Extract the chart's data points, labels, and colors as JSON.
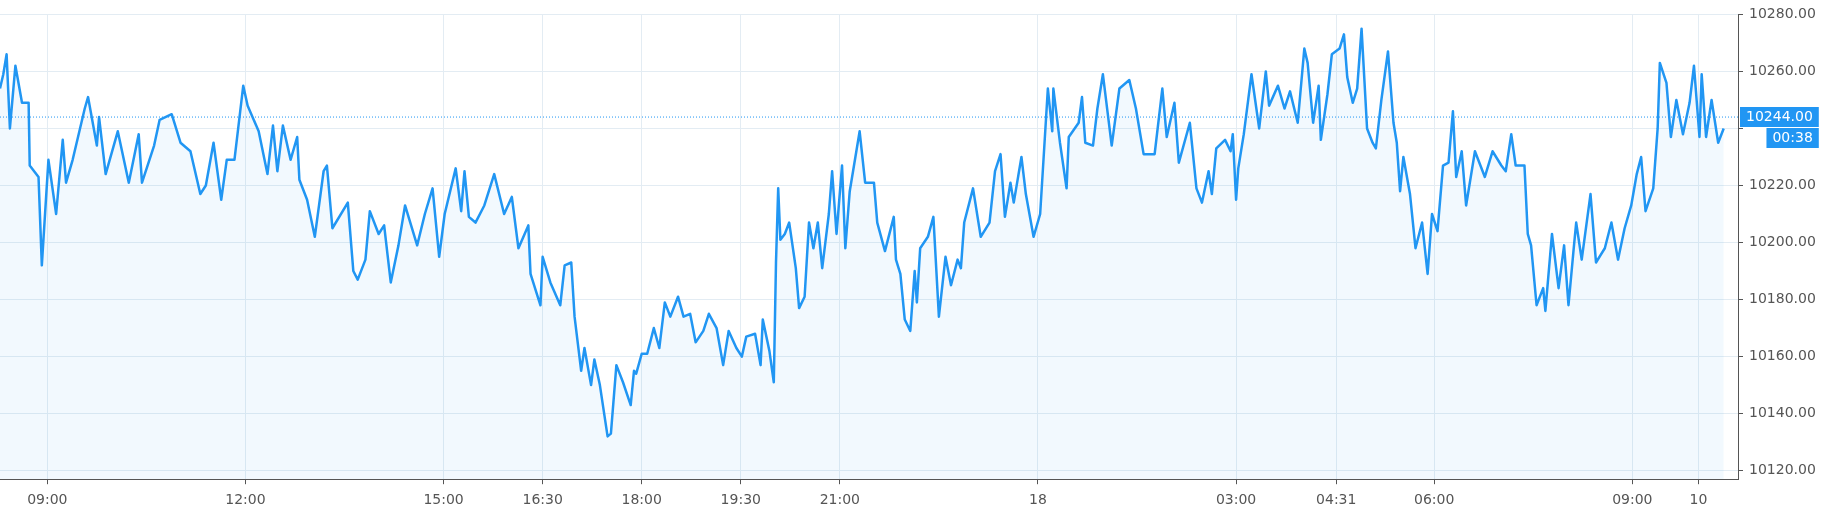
{
  "chart_data": {
    "type": "area",
    "color": "#2196f3",
    "marker": "none",
    "grid": true,
    "legend": false,
    "x": [
      "--09-17T08:17",
      "--09-17T08:20",
      "--09-17T08:23",
      "--09-17T08:26",
      "--09-17T08:31",
      "--09-17T08:37",
      "--09-17T08:43",
      "--09-17T08:44",
      "--09-17T08:52",
      "--09-17T08:55",
      "--09-17T09:01",
      "--09-17T09:08",
      "--09-17T09:14",
      "--09-17T09:17",
      "--09-17T09:23",
      "--09-17T09:34",
      "--09-17T09:37",
      "--09-17T09:45",
      "--09-17T09:47",
      "--09-17T09:53",
      "--09-17T10:04",
      "--09-17T10:14",
      "--09-17T10:23",
      "--09-17T10:26",
      "--09-17T10:37",
      "--09-17T10:42",
      "--09-17T10:53",
      "--09-17T11:01",
      "--09-17T11:10",
      "--09-17T11:19",
      "--09-17T11:24",
      "--09-17T11:31",
      "--09-17T11:38",
      "--09-17T11:43",
      "--09-17T11:50",
      "--09-17T11:58",
      "--09-17T12:02",
      "--09-17T12:12",
      "--09-17T12:20",
      "--09-17T12:25",
      "--09-17T12:29",
      "--09-17T12:34",
      "--09-17T12:41",
      "--09-17T12:47",
      "--09-17T12:49",
      "--09-17T12:56",
      "--09-17T13:03",
      "--09-17T13:11",
      "--09-17T13:14",
      "--09-17T13:19",
      "--09-17T13:33",
      "--09-17T13:38",
      "--09-17T13:42",
      "--09-17T13:49",
      "--09-17T13:53",
      "--09-17T14:01",
      "--09-17T14:06",
      "--09-17T14:12",
      "--09-17T14:19",
      "--09-17T14:25",
      "--09-17T14:36",
      "--09-17T14:43",
      "--09-17T14:50",
      "--09-17T14:56",
      "--09-17T15:01",
      "--09-17T15:11",
      "--09-17T15:16",
      "--09-17T15:19",
      "--09-17T15:23",
      "--09-17T15:29",
      "--09-17T15:37",
      "--09-17T15:46",
      "--09-17T15:55",
      "--09-17T16:02",
      "--09-17T16:08",
      "--09-17T16:17",
      "--09-17T16:19",
      "--09-17T16:28",
      "--09-17T16:30",
      "--09-17T16:37",
      "--09-17T16:46",
      "--09-17T16:50",
      "--09-17T16:56",
      "--09-17T16:59",
      "--09-17T17:05",
      "--09-17T17:08",
      "--09-17T17:14",
      "--09-17T17:17",
      "--09-17T17:22",
      "--09-17T17:29",
      "--09-17T17:32",
      "--09-17T17:37",
      "--09-17T17:43",
      "--09-17T17:50",
      "--09-17T17:53",
      "--09-17T17:55",
      "--09-17T18:00",
      "--09-17T18:05",
      "--09-17T18:11",
      "--09-17T18:16",
      "--09-17T18:21",
      "--09-17T18:26",
      "--09-17T18:33",
      "--09-17T18:38",
      "--09-17T18:44",
      "--09-17T18:49",
      "--09-17T18:56",
      "--09-17T19:01",
      "--09-17T19:08",
      "--09-17T19:14",
      "--09-17T19:19",
      "--09-17T19:26",
      "--09-17T19:31",
      "--09-17T19:35",
      "--09-17T19:43",
      "--09-17T19:48",
      "--09-17T19:50",
      "--09-17T19:56",
      "--09-17T20:00",
      "--09-17T20:02",
      "--09-17T20:04",
      "--09-17T20:06",
      "--09-17T20:10",
      "--09-17T20:14",
      "--09-17T20:20",
      "--09-17T20:23",
      "--09-17T20:28",
      "--09-17T20:32",
      "--09-17T20:36",
      "--09-17T20:40",
      "--09-17T20:44",
      "--09-17T20:50",
      "--09-17T20:53",
      "--09-17T20:57",
      "--09-17T21:02",
      "--09-17T21:05",
      "--09-17T21:09",
      "--09-17T21:18",
      "--09-17T21:23",
      "--09-17T21:31",
      "--09-17T21:34",
      "--09-17T21:41",
      "--09-17T21:49",
      "--09-17T21:51",
      "--09-17T21:55",
      "--09-17T21:59",
      "--09-17T22:04",
      "--09-17T22:08",
      "--09-17T22:10",
      "--09-17T22:13",
      "--09-17T22:20",
      "--09-17T22:25",
      "--09-17T22:30",
      "--09-17T22:36",
      "--09-17T22:41",
      "--09-17T22:47",
      "--09-17T22:50",
      "--09-17T22:53",
      "--09-17T23:01",
      "--09-17T23:08",
      "--09-17T23:16",
      "--09-17T23:21",
      "--09-17T23:26",
      "--09-17T23:30",
      "--09-17T23:35",
      "--09-17T23:38",
      "--09-17T23:45",
      "--09-17T23:49",
      "--09-17T23:56",
      "--09-18T00:02",
      "--09-18T00:09",
      "--09-18T00:13",
      "--09-18T00:14",
      "--09-18T00:20",
      "--09-18T00:26",
      "--09-18T00:28",
      "--09-18T00:37",
      "--09-18T00:40",
      "--09-18T00:43",
      "--09-18T00:50",
      "--09-18T00:54",
      "--09-18T00:59",
      "--09-18T01:07",
      "--09-18T01:14",
      "--09-18T01:23",
      "--09-18T01:29",
      "--09-18T01:36",
      "--09-18T01:46",
      "--09-18T01:53",
      "--09-18T01:57",
      "--09-18T02:04",
      "--09-18T02:08",
      "--09-18T02:18",
      "--09-18T02:24",
      "--09-18T02:29",
      "--09-18T02:35",
      "--09-18T02:38",
      "--09-18T02:42",
      "--09-18T02:50",
      "--09-18T02:55",
      "--09-18T02:57",
      "--09-18T03:00",
      "--09-18T03:02",
      "--09-18T03:07",
      "--09-18T03:11",
      "--09-18T03:14",
      "--09-18T03:21",
      "--09-18T03:27",
      "--09-18T03:30",
      "--09-18T03:38",
      "--09-18T03:44",
      "--09-18T03:49",
      "--09-18T03:56",
      "--09-18T04:02",
      "--09-18T04:05",
      "--09-18T04:10",
      "--09-18T04:15",
      "--09-18T04:17",
      "--09-18T04:23",
      "--09-18T04:27",
      "--09-18T04:34",
      "--09-18T04:38",
      "--09-18T04:41",
      "--09-18T04:46",
      "--09-18T04:50",
      "--09-18T04:54",
      "--09-18T04:59",
      "--09-18T05:04",
      "--09-18T05:07",
      "--09-18T05:12",
      "--09-18T05:18",
      "--09-18T05:23",
      "--09-18T05:26",
      "--09-18T05:29",
      "--09-18T05:32",
      "--09-18T05:38",
      "--09-18T05:43",
      "--09-18T05:49",
      "--09-18T05:54",
      "--09-18T05:58",
      "--09-18T06:03",
      "--09-18T06:08",
      "--09-18T06:13",
      "--09-18T06:17",
      "--09-18T06:20",
      "--09-18T06:25",
      "--09-18T06:29",
      "--09-18T06:37",
      "--09-18T06:46",
      "--09-18T06:53",
      "--09-18T07:01",
      "--09-18T07:05",
      "--09-18T07:10",
      "--09-18T07:14",
      "--09-18T07:22",
      "--09-18T07:25",
      "--09-18T07:28",
      "--09-18T07:33",
      "--09-18T07:39",
      "--09-18T07:41",
      "--09-18T07:47",
      "--09-18T07:53",
      "--09-18T07:58",
      "--09-18T08:02",
      "--09-18T08:07",
      "--09-18T08:09",
      "--09-18T08:14",
      "--09-18T08:22",
      "--09-18T08:27",
      "--09-18T08:35",
      "--09-18T08:41",
      "--09-18T08:47",
      "--09-18T08:53",
      "--09-18T08:59",
      "--09-18T09:04",
      "--09-18T09:08",
      "--09-18T09:12",
      "--09-18T09:19",
      "--09-18T09:23",
      "--09-18T09:25",
      "--09-18T09:31",
      "--09-18T09:35",
      "--09-18T09:40",
      "--09-18T09:46",
      "--09-18T09:52",
      "--09-18T09:56",
      "--09-18T10:01",
      "--09-18T10:03",
      "--09-18T10:07",
      "--09-18T10:12",
      "--09-18T10:18",
      "--09-18T10:23"
    ],
    "values": [
      10254,
      10259,
      10266,
      10240,
      10262,
      10249,
      10249,
      10227,
      10223,
      10192,
      10229,
      10210,
      10236,
      10221,
      10229,
      10247,
      10251,
      10234,
      10244,
      10224,
      10239,
      10221,
      10238,
      10221,
      10234,
      10243,
      10245,
      10235,
      10232,
      10217,
      10220,
      10235,
      10215,
      10229,
      10229,
      10255,
      10248,
      10239,
      10224,
      10241,
      10225,
      10241,
      10229,
      10237,
      10222,
      10215,
      10202,
      10225,
      10227,
      10205,
      10214,
      10190,
      10187,
      10194,
      10211,
      10203,
      10206,
      10186,
      10199,
      10213,
      10199,
      10210,
      10219,
      10195,
      10210,
      10226,
      10211,
      10225,
      10209,
      10207,
      10213,
      10224,
      10210,
      10216,
      10198,
      10206,
      10189,
      10178,
      10195,
      10186,
      10178,
      10192,
      10193,
      10174,
      10155,
      10163,
      10150,
      10159,
      10150,
      10132,
      10133,
      10157,
      10151,
      10143,
      10155,
      10154,
      10161,
      10161,
      10170,
      10163,
      10179,
      10174,
      10181,
      10174,
      10175,
      10165,
      10169,
      10175,
      10170,
      10157,
      10169,
      10163,
      10160,
      10167,
      10168,
      10157,
      10173,
      10162,
      10151,
      10193,
      10219,
      10201,
      10203,
      10207,
      10191,
      10177,
      10181,
      10207,
      10198,
      10207,
      10191,
      10210,
      10225,
      10203,
      10227,
      10198,
      10218,
      10239,
      10221,
      10221,
      10207,
      10197,
      10209,
      10194,
      10189,
      10173,
      10169,
      10190,
      10179,
      10198,
      10202,
      10209,
      10174,
      10195,
      10185,
      10194,
      10191,
      10207,
      10219,
      10202,
      10207,
      10225,
      10231,
      10209,
      10221,
      10214,
      10230,
      10217,
      10202,
      10210,
      10254,
      10239,
      10254,
      10235,
      10219,
      10237,
      10242,
      10251,
      10235,
      10234,
      10247,
      10259,
      10234,
      10254,
      10257,
      10247,
      10231,
      10231,
      10254,
      10237,
      10249,
      10228,
      10242,
      10219,
      10214,
      10225,
      10217,
      10233,
      10236,
      10232,
      10238,
      10215,
      10226,
      10238,
      10250,
      10259,
      10240,
      10260,
      10248,
      10255,
      10247,
      10253,
      10242,
      10268,
      10263,
      10242,
      10255,
      10236,
      10252,
      10266,
      10268,
      10273,
      10258,
      10249,
      10254,
      10275,
      10240,
      10235,
      10233,
      10250,
      10267,
      10242,
      10235,
      10218,
      10230,
      10217,
      10198,
      10207,
      10189,
      10210,
      10204,
      10227,
      10228,
      10246,
      10223,
      10232,
      10213,
      10232,
      10223,
      10232,
      10227,
      10225,
      10238,
      10227,
      10227,
      10203,
      10199,
      10178,
      10184,
      10176,
      10203,
      10184,
      10199,
      10178,
      10199,
      10207,
      10194,
      10217,
      10193,
      10198,
      10207,
      10194,
      10205,
      10213,
      10224,
      10230,
      10211,
      10219,
      10240,
      10263,
      10256,
      10237,
      10250,
      10238,
      10249,
      10262,
      10237,
      10259,
      10237,
      10250,
      10235,
      10240
    ],
    "xlim": [
      "--09-17T08:17",
      "--09-18T10:36"
    ],
    "xticks": [
      {
        "value": "--09-17T09:00",
        "label": "09:00"
      },
      {
        "value": "--09-17T12:00",
        "label": "12:00"
      },
      {
        "value": "--09-17T15:00",
        "label": "15:00"
      },
      {
        "value": "--09-17T16:30",
        "label": "16:30"
      },
      {
        "value": "--09-17T18:00",
        "label": "18:00"
      },
      {
        "value": "--09-17T19:30",
        "label": "19:30"
      },
      {
        "value": "--09-17T21:00",
        "label": "21:00"
      },
      {
        "value": "--09-18T00:00",
        "label": "18"
      },
      {
        "value": "--09-18T03:00",
        "label": "03:00"
      },
      {
        "value": "--09-18T04:31",
        "label": "04:31"
      },
      {
        "value": "--09-18T06:00",
        "label": "06:00"
      },
      {
        "value": "--09-18T09:00",
        "label": "09:00"
      },
      {
        "value": "--09-18T10:00",
        "label": "10"
      }
    ],
    "ylim": [
      10117,
      10280
    ],
    "yticks": [
      {
        "value": 10120,
        "label": "10120.00"
      },
      {
        "value": 10140,
        "label": "10140.00"
      },
      {
        "value": 10160,
        "label": "10160.00"
      },
      {
        "value": 10180,
        "label": "10180.00"
      },
      {
        "value": 10200,
        "label": "10200.00"
      },
      {
        "value": 10220,
        "label": "10220.00"
      },
      {
        "value": 10240,
        "label": null
      },
      {
        "value": 10260,
        "label": "10260.00"
      },
      {
        "value": 10280,
        "label": "10280.00"
      }
    ],
    "ref_lines": [
      {
        "axis": "y",
        "value": 10244,
        "label": "10244.00",
        "color": "#2196f3",
        "line_style": "dotted"
      }
    ],
    "annotations": [
      "00:38"
    ]
  }
}
